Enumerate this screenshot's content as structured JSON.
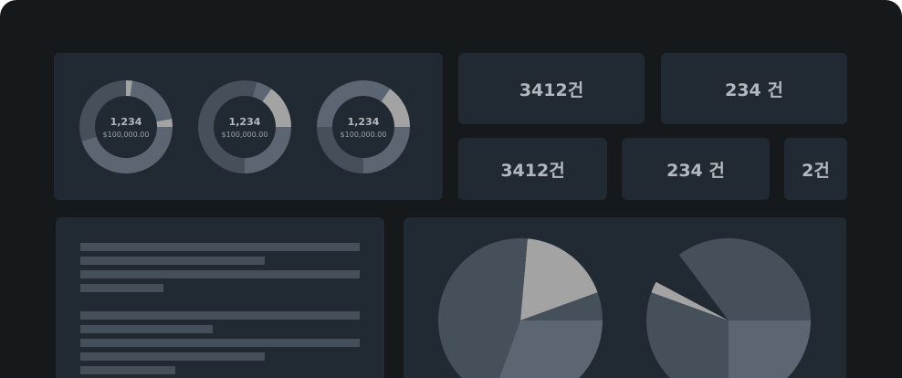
{
  "colors": {
    "background": "#16191c",
    "card": "#212a33",
    "dark": "#46505a",
    "mid": "#5b6672",
    "light": "#a3a3a3",
    "text": "#b3b8bf"
  },
  "donuts": [
    {
      "value": "1,234",
      "amount": "$100,000.00",
      "segments": [
        {
          "from": 0,
          "to": 8,
          "tone": "light"
        },
        {
          "from": 8,
          "to": 80,
          "tone": "mid"
        },
        {
          "from": 80,
          "to": 90,
          "tone": "light"
        },
        {
          "from": 90,
          "to": 252,
          "tone": "mid"
        },
        {
          "from": 252,
          "to": 360,
          "tone": "dark"
        }
      ]
    },
    {
      "value": "1,234",
      "amount": "$100,000.00",
      "segments": [
        {
          "from": 0,
          "to": 15,
          "tone": "dark"
        },
        {
          "from": 15,
          "to": 35,
          "tone": "mid"
        },
        {
          "from": 35,
          "to": 90,
          "tone": "light"
        },
        {
          "from": 90,
          "to": 180,
          "tone": "mid"
        },
        {
          "from": 180,
          "to": 360,
          "tone": "dark"
        }
      ]
    },
    {
      "value": "1,234",
      "amount": "$100,000.00",
      "segments": [
        {
          "from": -90,
          "to": 35,
          "tone": "mid"
        },
        {
          "from": 35,
          "to": 90,
          "tone": "light"
        },
        {
          "from": 90,
          "to": 180,
          "tone": "mid"
        },
        {
          "from": 180,
          "to": 270,
          "tone": "dark"
        }
      ]
    }
  ],
  "stats": [
    "3412건",
    "234 건",
    "3412건",
    "234 건",
    "2건"
  ],
  "pies": [
    {
      "segments": [
        {
          "from": 5,
          "to": 70,
          "tone": "light"
        },
        {
          "from": 70,
          "to": 90,
          "tone": "dark"
        },
        {
          "from": 90,
          "to": 195,
          "tone": "mid"
        },
        {
          "from": 195,
          "to": 365,
          "tone": "dark"
        }
      ]
    },
    {
      "segments": [
        {
          "from": -37,
          "to": 90,
          "tone": "dark"
        },
        {
          "from": 90,
          "to": 180,
          "tone": "mid"
        },
        {
          "from": 180,
          "to": 290,
          "tone": "dark"
        },
        {
          "from": 290,
          "to": 298,
          "tone": "light"
        }
      ]
    }
  ]
}
